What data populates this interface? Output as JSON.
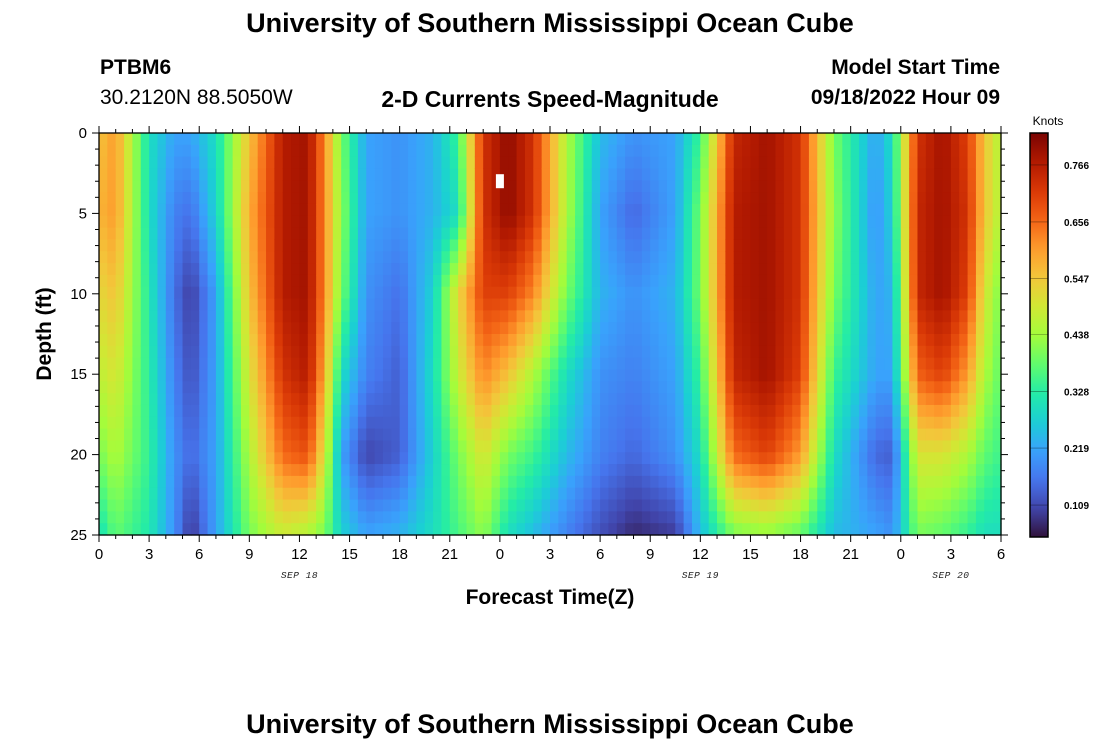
{
  "page": {
    "title_top": "University of Southern Mississippi Ocean Cube",
    "station_id": "PTBM6",
    "station_coords": "30.2120N  88.5050W",
    "chart_title": "2-D Currents Speed-Magnitude",
    "model_start_label": "Model Start Time",
    "model_start_value": "09/18/2022 Hour 09",
    "title_bottom": "University of Southern Mississippi Ocean Cube"
  },
  "colors": {
    "colormap": [
      "#30123b",
      "#4145ab",
      "#4675ed",
      "#39a2fc",
      "#1bcfd4",
      "#24eca6",
      "#61fc6c",
      "#a4fc3b",
      "#d1e834",
      "#f3c63a",
      "#fe9b2d",
      "#f36315",
      "#d93806",
      "#b11901",
      "#7a0402"
    ],
    "marker": "#ffffff"
  },
  "chart_data": {
    "type": "heatmap",
    "xlabel": "Forecast Time(Z)",
    "ylabel": "Depth (ft)",
    "x_hours_range": [
      0,
      54
    ],
    "x_tick_labels": [
      "0",
      "3",
      "6",
      "9",
      "12",
      "15",
      "18",
      "21",
      "0",
      "3",
      "6",
      "9",
      "12",
      "15",
      "18",
      "21",
      "0",
      "3",
      "6"
    ],
    "date_labels": [
      {
        "text": "SEP 18",
        "at_hour": 12
      },
      {
        "text": "SEP 19",
        "at_hour": 36
      },
      {
        "text": "SEP 20",
        "at_hour": 51
      }
    ],
    "y_range_ft": [
      0,
      25
    ],
    "y_tick_labels": [
      "0",
      "5",
      "10",
      "15",
      "20",
      "25"
    ],
    "y_tick_values": [
      0,
      5,
      10,
      15,
      20,
      25
    ],
    "colorbar": {
      "unit": "Knots",
      "range": [
        0.055,
        0.82
      ],
      "ticks": [
        0.109,
        0.219,
        0.328,
        0.438,
        0.547,
        0.656,
        0.766
      ],
      "tick_labels": [
        "0.109",
        "0.219",
        "0.328",
        "0.438",
        "0.547",
        "0.656",
        "0.766"
      ]
    },
    "columns_knots_by_depth": {
      "description_depths_ft": [
        0,
        5,
        10,
        15,
        20,
        25
      ],
      "hours": [
        0,
        1,
        3,
        4.5,
        5.5,
        7,
        9,
        11,
        12.5,
        13.5,
        14.5,
        16,
        18,
        20,
        21.5,
        23,
        24.5,
        26,
        28,
        30,
        32,
        34.5,
        36,
        38,
        40,
        42,
        44,
        46.5,
        47.5,
        49,
        50.5,
        52,
        53,
        54
      ],
      "values": [
        [
          0.55,
          0.57,
          0.52,
          0.47,
          0.4,
          0.3
        ],
        [
          0.6,
          0.6,
          0.55,
          0.5,
          0.45,
          0.38
        ],
        [
          0.3,
          0.3,
          0.32,
          0.33,
          0.34,
          0.32
        ],
        [
          0.22,
          0.18,
          0.16,
          0.18,
          0.2,
          0.2
        ],
        [
          0.22,
          0.16,
          0.1,
          0.12,
          0.15,
          0.09
        ],
        [
          0.3,
          0.28,
          0.22,
          0.22,
          0.22,
          0.22
        ],
        [
          0.55,
          0.58,
          0.55,
          0.5,
          0.45,
          0.4
        ],
        [
          0.76,
          0.76,
          0.76,
          0.72,
          0.65,
          0.48
        ],
        [
          0.78,
          0.78,
          0.78,
          0.76,
          0.68,
          0.45
        ],
        [
          0.62,
          0.62,
          0.62,
          0.58,
          0.5,
          0.4
        ],
        [
          0.4,
          0.42,
          0.4,
          0.3,
          0.22,
          0.28
        ],
        [
          0.22,
          0.22,
          0.2,
          0.18,
          0.11,
          0.22
        ],
        [
          0.2,
          0.2,
          0.16,
          0.14,
          0.14,
          0.24
        ],
        [
          0.24,
          0.24,
          0.28,
          0.3,
          0.28,
          0.3
        ],
        [
          0.35,
          0.3,
          0.52,
          0.48,
          0.4,
          0.36
        ],
        [
          0.72,
          0.72,
          0.7,
          0.62,
          0.5,
          0.42
        ],
        [
          0.8,
          0.8,
          0.7,
          0.55,
          0.4,
          0.3
        ],
        [
          0.72,
          0.72,
          0.62,
          0.45,
          0.35,
          0.25
        ],
        [
          0.45,
          0.45,
          0.4,
          0.3,
          0.25,
          0.18
        ],
        [
          0.25,
          0.22,
          0.24,
          0.2,
          0.18,
          0.12
        ],
        [
          0.2,
          0.15,
          0.2,
          0.18,
          0.15,
          0.08
        ],
        [
          0.22,
          0.22,
          0.24,
          0.22,
          0.2,
          0.1
        ],
        [
          0.35,
          0.4,
          0.4,
          0.35,
          0.3,
          0.25
        ],
        [
          0.74,
          0.76,
          0.76,
          0.74,
          0.65,
          0.4
        ],
        [
          0.78,
          0.78,
          0.78,
          0.78,
          0.7,
          0.42
        ],
        [
          0.72,
          0.72,
          0.72,
          0.7,
          0.6,
          0.38
        ],
        [
          0.4,
          0.42,
          0.4,
          0.35,
          0.3,
          0.25
        ],
        [
          0.22,
          0.2,
          0.22,
          0.22,
          0.15,
          0.22
        ],
        [
          0.3,
          0.28,
          0.24,
          0.22,
          0.14,
          0.2
        ],
        [
          0.72,
          0.74,
          0.74,
          0.66,
          0.5,
          0.4
        ],
        [
          0.78,
          0.78,
          0.78,
          0.7,
          0.5,
          0.38
        ],
        [
          0.7,
          0.72,
          0.7,
          0.6,
          0.45,
          0.34
        ],
        [
          0.55,
          0.55,
          0.5,
          0.45,
          0.38,
          0.3
        ],
        [
          0.45,
          0.45,
          0.4,
          0.38,
          0.35,
          0.3
        ]
      ]
    },
    "marker": {
      "hour": 0.0,
      "hour_offset": 24,
      "depth_ft": 3
    }
  }
}
